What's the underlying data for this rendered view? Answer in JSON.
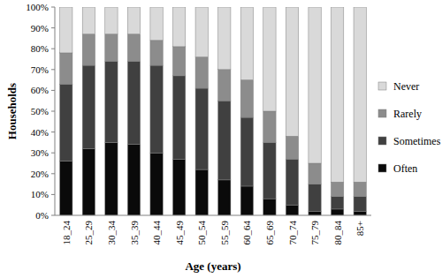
{
  "chart_data": {
    "type": "bar",
    "stacked": true,
    "grid": false,
    "legend": "right",
    "x_label": "Age (years)",
    "y_label": "Households",
    "categories": [
      "18_24",
      "25_29",
      "30_34",
      "35_39",
      "40_44",
      "45_49",
      "50_54",
      "55_59",
      "60_64",
      "65_69",
      "70_74",
      "75_79",
      "80_84",
      "85+"
    ],
    "series": [
      {
        "name": "Often",
        "color": "#0a0a0a",
        "values": [
          26,
          32,
          35,
          34,
          30,
          27,
          22,
          17,
          14,
          8,
          5,
          2,
          3,
          2
        ]
      },
      {
        "name": "Sometimes",
        "color": "#404040",
        "values": [
          37,
          40,
          39,
          40,
          42,
          40,
          39,
          38,
          33,
          27,
          22,
          13,
          6,
          7
        ]
      },
      {
        "name": "Rarely",
        "color": "#8c8c8c",
        "values": [
          15,
          15,
          13,
          13,
          12,
          14,
          15,
          15,
          18,
          15,
          11,
          10,
          7,
          7
        ]
      },
      {
        "name": "Never",
        "color": "#d9d9d9",
        "values": [
          22,
          13,
          13,
          13,
          16,
          19,
          24,
          30,
          35,
          50,
          62,
          75,
          84,
          84
        ]
      }
    ],
    "ylim": [
      0,
      100
    ],
    "yticks": [
      {
        "value": 0,
        "label": "0%"
      },
      {
        "value": 10,
        "label": "10%"
      },
      {
        "value": 20,
        "label": "20%"
      },
      {
        "value": 30,
        "label": "30%"
      },
      {
        "value": 40,
        "label": "40%"
      },
      {
        "value": 50,
        "label": "50%"
      },
      {
        "value": 60,
        "label": "60%"
      },
      {
        "value": 70,
        "label": "70%"
      },
      {
        "value": 80,
        "label": "80%"
      },
      {
        "value": 90,
        "label": "90%"
      },
      {
        "value": 100,
        "label": "100%"
      }
    ]
  }
}
